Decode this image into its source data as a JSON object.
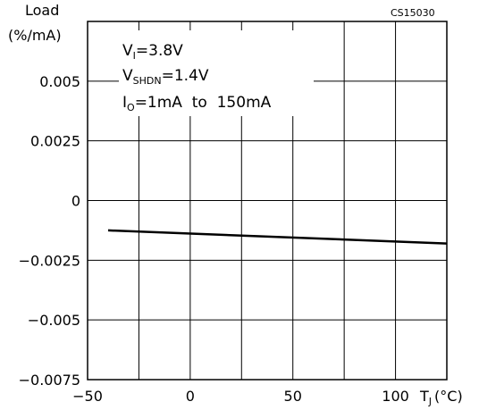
{
  "chart_data": {
    "type": "line",
    "ylabel_line1": "Load",
    "ylabel_line2": "(%/mA)",
    "xlabel_main": "T",
    "xlabel_sub": "J",
    "xlabel_unit": "(°C)",
    "code": "CS15030",
    "xlim": [
      -50,
      125
    ],
    "ylim": [
      -0.0075,
      0.0075
    ],
    "x_ticks": [
      -50,
      0,
      50,
      100
    ],
    "x_tick_labels": [
      "−50",
      "0",
      "50",
      "100"
    ],
    "y_ticks": [
      0.005,
      0.0025,
      0,
      -0.0025,
      -0.005,
      -0.0075
    ],
    "y_tick_labels": [
      "0.005",
      "0.0025",
      "0",
      "−0.0025",
      "−0.005",
      "−0.0075"
    ],
    "grid": true,
    "series": [
      {
        "x": [
          -40,
          125
        ],
        "y": [
          -0.00125,
          -0.0018
        ]
      }
    ],
    "annotations": {
      "vi": {
        "main": "V",
        "sub": "I",
        "rest": "=3.8V"
      },
      "vshdn": {
        "main": "V",
        "sub": "SHDN",
        "rest": "=1.4V"
      },
      "io": {
        "main": "I",
        "sub": "O",
        "rest": "=1mA  to  150mA"
      }
    }
  }
}
